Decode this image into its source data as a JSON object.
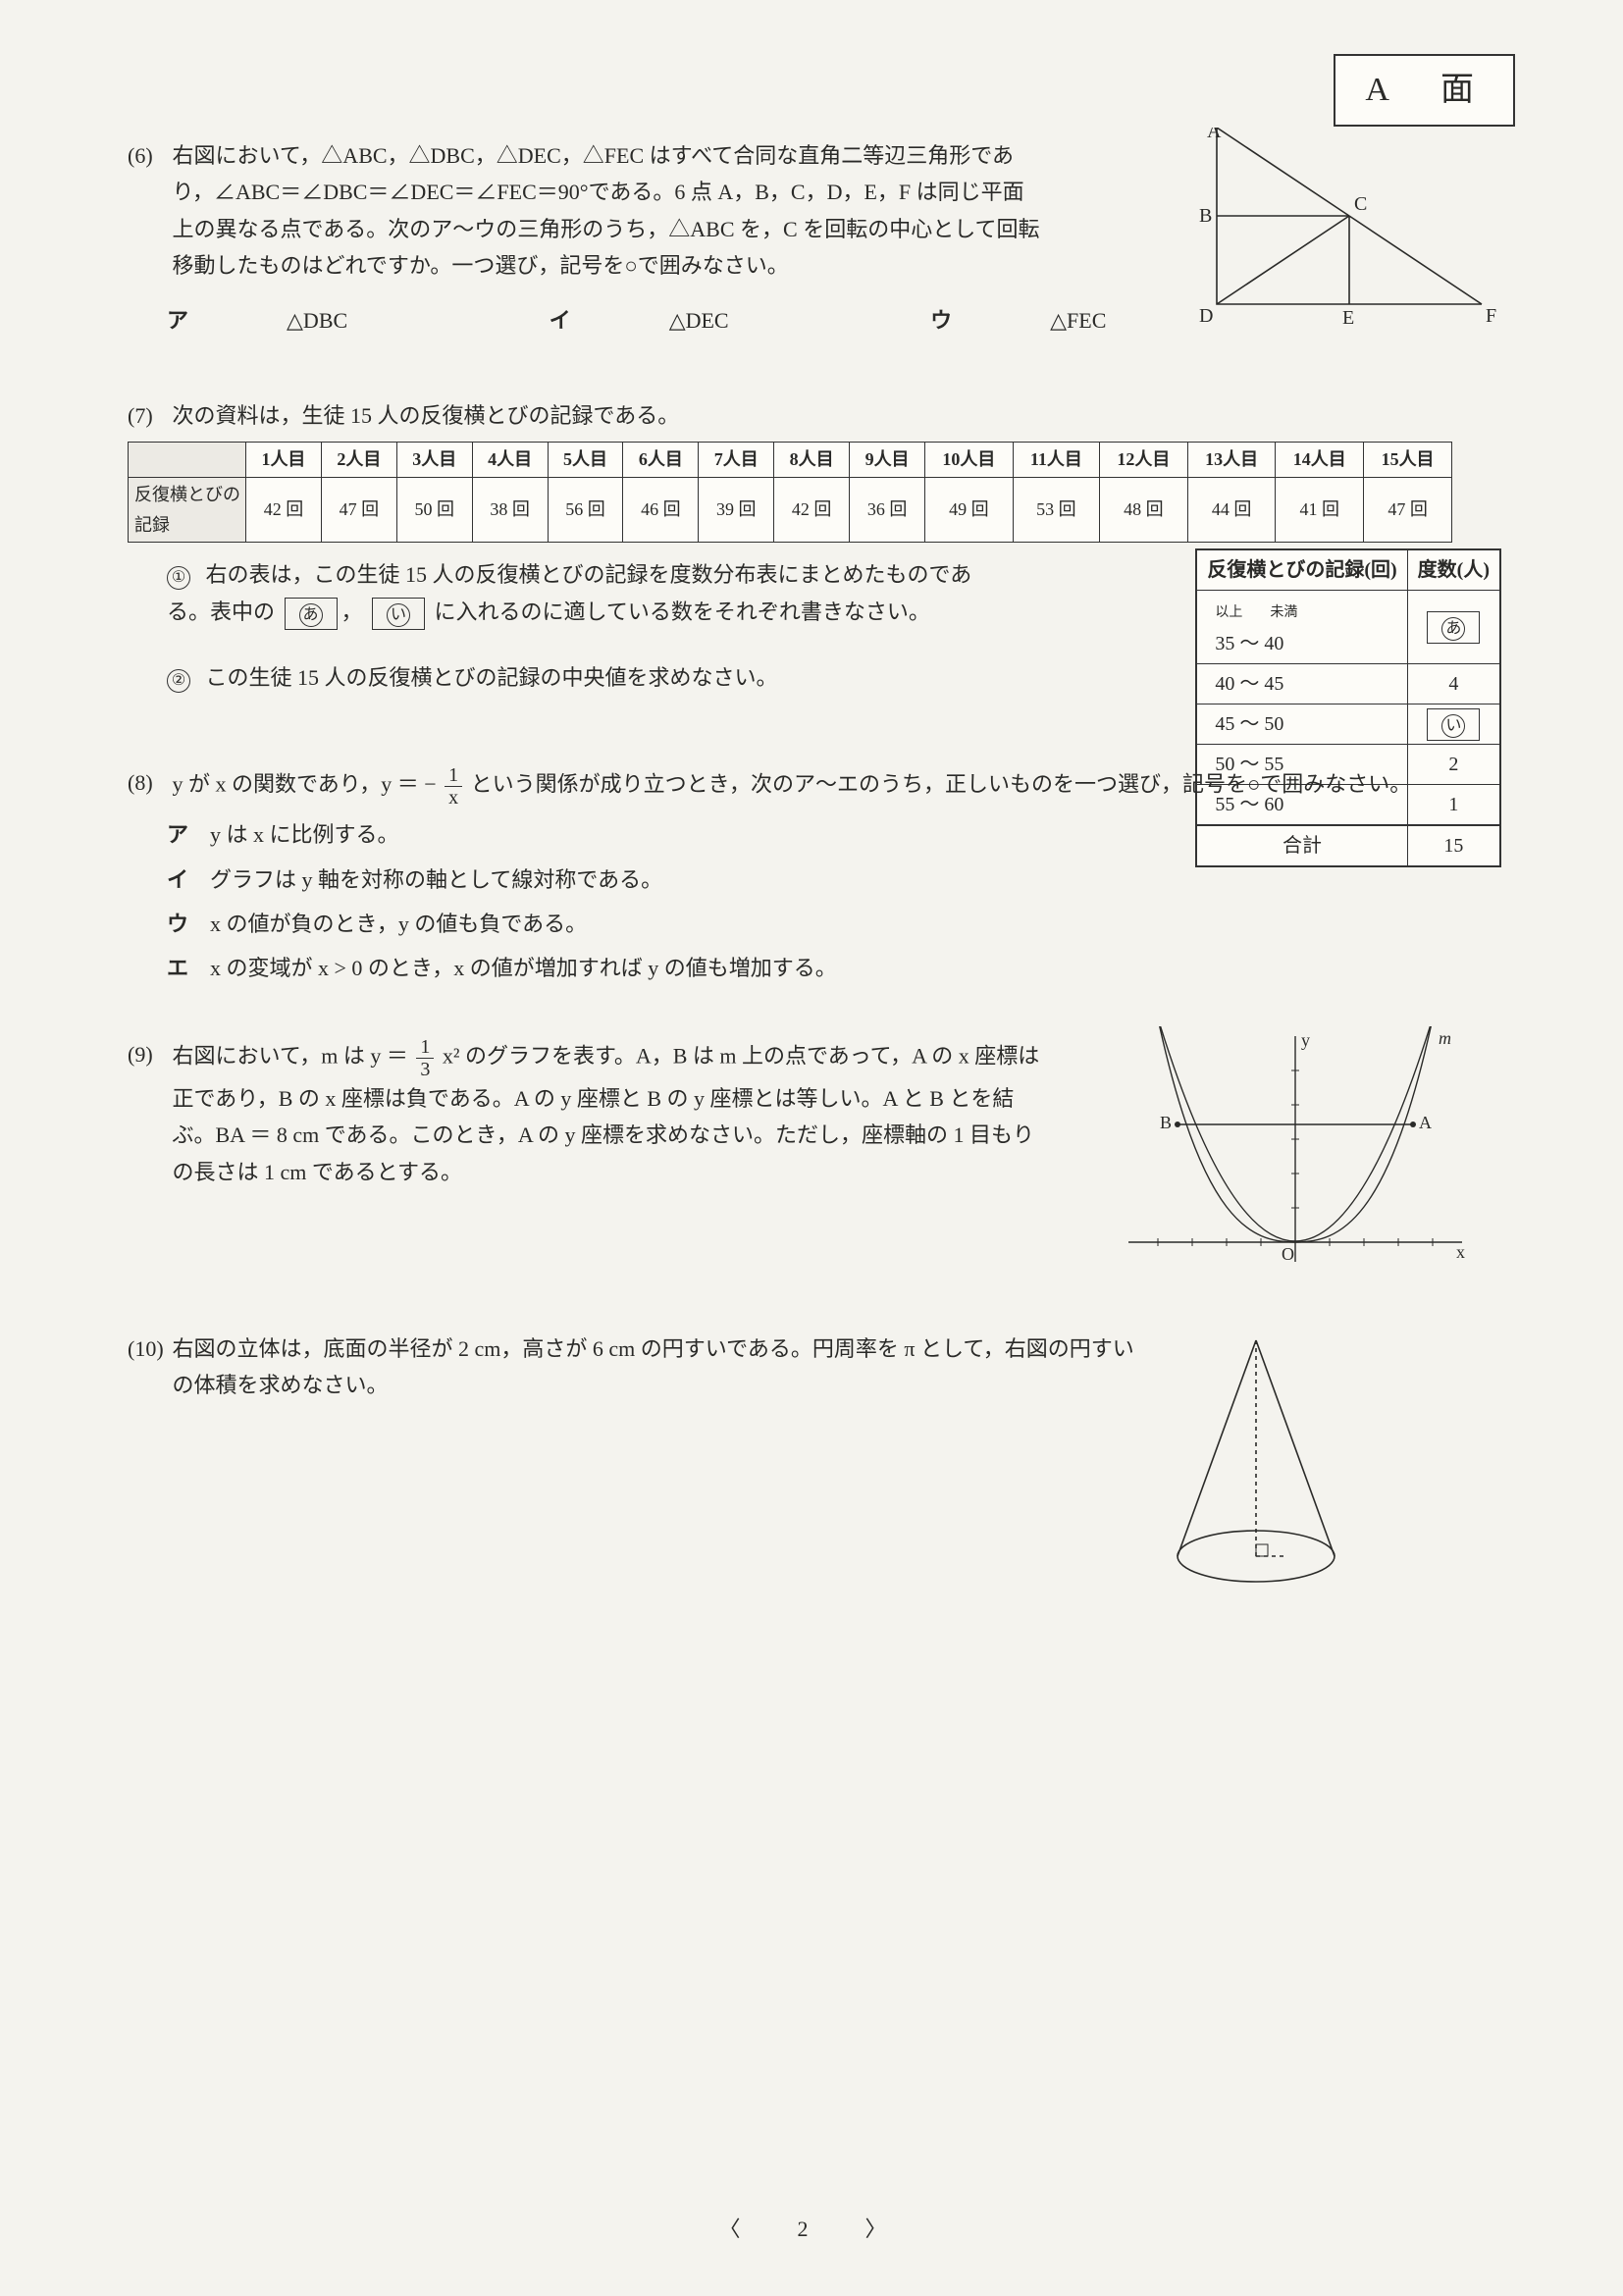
{
  "page_label": "A　面",
  "page_number": "〈　2　〉",
  "q6": {
    "num": "(6)",
    "text1": "右図において，△ABC，△DBC，△DEC，△FEC はすべて合同な直角二等辺三角形であり，∠ABC＝∠DBC＝∠DEC＝∠FEC＝90°である。6 点 A，B，C，D，E，F は同じ平面上の異なる点である。次のア〜ウの三角形のうち，△ABC を，C を回転の中心として回転移動したものはどれですか。一つ選び，記号を○で囲みなさい。",
    "choices": [
      {
        "label": "ア",
        "text": "△DBC"
      },
      {
        "label": "イ",
        "text": "△DEC"
      },
      {
        "label": "ウ",
        "text": "△FEC"
      }
    ],
    "fig": {
      "points": {
        "A": "A",
        "B": "B",
        "C": "C",
        "D": "D",
        "E": "E",
        "F": "F"
      },
      "stroke": "#2a2a28",
      "stroke_width": 1.6
    }
  },
  "q7": {
    "num": "(7)",
    "lead": "次の資料は，生徒 15 人の反復横とびの記録である。",
    "data_table": {
      "row_head_blank": "",
      "headers": [
        "1人目",
        "2人目",
        "3人目",
        "4人目",
        "5人目",
        "6人目",
        "7人目",
        "8人目",
        "9人目",
        "10人目",
        "11人目",
        "12人目",
        "13人目",
        "14人目",
        "15人目"
      ],
      "row_label": "反復横とびの記録",
      "unit": "回",
      "values": [
        42,
        47,
        50,
        38,
        56,
        46,
        39,
        42,
        36,
        49,
        53,
        48,
        44,
        41,
        47
      ]
    },
    "sub1": {
      "mark": "①",
      "text_a": "右の表は，この生徒 15 人の反復横とびの記録を度数分布表にまとめたものである。表中の",
      "slot_a": "あ",
      "slot_b": "い",
      "text_b": "に入れるのに適している数をそれぞれ書きなさい。"
    },
    "sub2": {
      "mark": "②",
      "text": "この生徒 15 人の反復横とびの記録の中央値を求めなさい。"
    },
    "freq_table": {
      "col1": "反復横とびの記録(回)",
      "col2": "度数(人)",
      "range_note": "以上　　未満",
      "rows": [
        {
          "range": "35 〜 40",
          "freq": "あ",
          "is_slot": true
        },
        {
          "range": "40 〜 45",
          "freq": "4"
        },
        {
          "range": "45 〜 50",
          "freq": "い",
          "is_slot": true
        },
        {
          "range": "50 〜 55",
          "freq": "2"
        },
        {
          "range": "55 〜 60",
          "freq": "1"
        }
      ],
      "total_label": "合計",
      "total": "15"
    }
  },
  "q8": {
    "num": "(8)",
    "lead_a": "y が x の関数であり，y ＝ −",
    "frac": {
      "n": "1",
      "d": "x"
    },
    "lead_b": " という関係が成り立つとき，次のア〜エのうち，正しいものを一つ選び，記号を○で囲みなさい。",
    "opts": [
      {
        "label": "ア",
        "text": "y は x に比例する。"
      },
      {
        "label": "イ",
        "text": "グラフは y 軸を対称の軸として線対称である。"
      },
      {
        "label": "ウ",
        "text": "x の値が負のとき，y の値も負である。"
      },
      {
        "label": "エ",
        "text": "x の変域が x > 0 のとき，x の値が増加すれば y の値も増加する。"
      }
    ]
  },
  "q9": {
    "num": "(9)",
    "lead_a": "右図において，m は y ＝ ",
    "frac": {
      "n": "1",
      "d": "3"
    },
    "lead_b": " x² のグラフを表す。A，B は m 上の点であって，A の x 座標は正であり，B の x 座標は負である。A の y 座標と B の y 座標とは等しい。A と B とを結ぶ。BA ＝ 8 cm である。このとき，A の y 座標を求めなさい。ただし，座標軸の 1 目もりの長さは 1 cm であるとする。",
    "fig": {
      "labels": {
        "y": "y",
        "x": "x",
        "m": "m",
        "A": "A",
        "B": "B",
        "O": "O"
      },
      "stroke": "#2a2a28"
    }
  },
  "q10": {
    "num": "(10)",
    "text": "右図の立体は，底面の半径が 2 cm，高さが 6 cm の円すいである。円周率を π として，右図の円すいの体積を求めなさい。",
    "fig": {
      "stroke": "#2a2a28"
    }
  },
  "colors": {
    "bg": "#f4f3ee",
    "ink": "#2a2a28",
    "paper": "#fdfcf8"
  }
}
